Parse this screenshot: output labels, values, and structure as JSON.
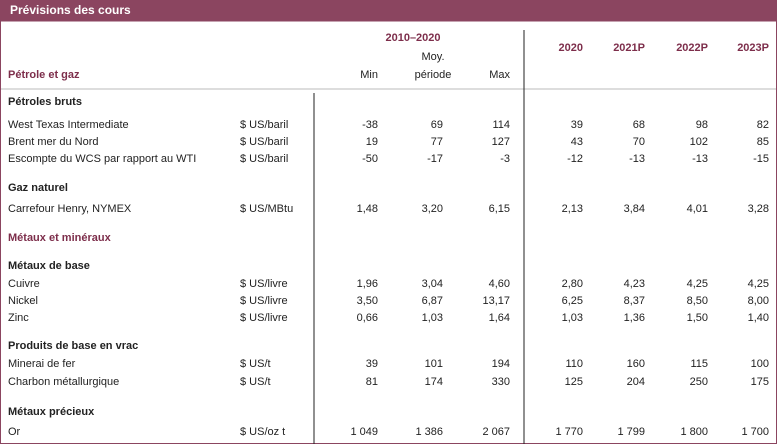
{
  "header": {
    "title": "Prévisions des cours",
    "section": "Pétrole et gaz",
    "period": "2010–2020",
    "columns": [
      "Min",
      "Moy.",
      "période",
      "Max"
    ],
    "years": [
      "2020",
      "2021P",
      "2022P",
      "2023P"
    ]
  },
  "rows": [
    {
      "heading": "Pétroles bruts"
    },
    {
      "label": "West Texas Intermediate",
      "unit": "$ US/baril",
      "values": [
        "-38",
        "69",
        "114",
        "39",
        "68",
        "98",
        "82"
      ]
    },
    {
      "label": "Brent mer du Nord",
      "unit": "$ US/baril",
      "values": [
        "19",
        "77",
        "127",
        "43",
        "70",
        "102",
        "85"
      ]
    },
    {
      "label": "Escompte du WCS par rapport au WTI",
      "unit": "$ US/baril",
      "values": [
        "-50",
        "-17",
        "-3",
        "-12",
        "-13",
        "-13",
        "-15"
      ]
    },
    {
      "heading": "Gaz naturel"
    },
    {
      "label": "Carrefour Henry, NYMEX",
      "unit": "$ US/MBtu",
      "values": [
        "1,48",
        "3,20",
        "6,15",
        "2,13",
        "3,84",
        "4,01",
        "3,28"
      ]
    },
    {
      "category": "Métaux et minéraux"
    },
    {
      "heading": "Métaux de base"
    },
    {
      "label": "Cuivre",
      "unit": "$ US/livre",
      "values": [
        "1,96",
        "3,04",
        "4,60",
        "2,80",
        "4,23",
        "4,25",
        "4,25"
      ]
    },
    {
      "label": "Nickel",
      "unit": "$ US/livre",
      "values": [
        "3,50",
        "6,87",
        "13,17",
        "6,25",
        "8,37",
        "8,50",
        "8,00"
      ]
    },
    {
      "label": "Zinc",
      "unit": "$ US/livre",
      "values": [
        "0,66",
        "1,03",
        "1,64",
        "1,03",
        "1,36",
        "1,50",
        "1,40"
      ]
    },
    {
      "heading": "Produits de base en vrac"
    },
    {
      "label": "Minerai de fer",
      "unit": "$ US/t",
      "values": [
        "39",
        "101",
        "194",
        "110",
        "160",
        "115",
        "100"
      ]
    },
    {
      "label": "Charbon métallurgique",
      "unit": "$ US/t",
      "values": [
        "81",
        "174",
        "330",
        "125",
        "204",
        "250",
        "175"
      ]
    },
    {
      "heading": "Métaux précieux"
    },
    {
      "label": "Or",
      "unit": "$ US/oz t",
      "values": [
        "1 049",
        "1 386",
        "2 067",
        "1 770",
        "1 799",
        "1 800",
        "1 700"
      ]
    }
  ]
}
